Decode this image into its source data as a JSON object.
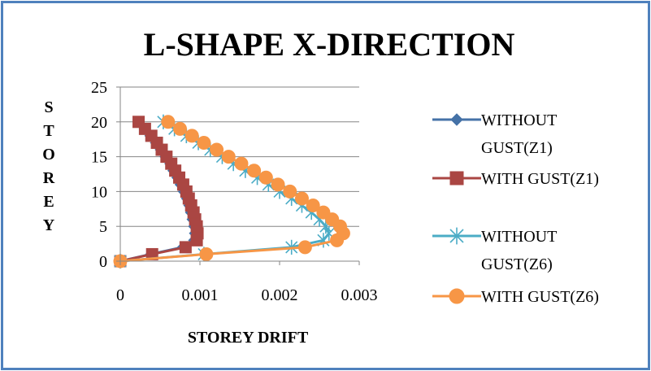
{
  "chart_data": {
    "type": "line",
    "title": "L-SHAPE X-DIRECTION",
    "xlabel": "STOREY DRIFT",
    "ylabel": "STOREY",
    "xlim": [
      0,
      0.003
    ],
    "ylim": [
      0,
      25
    ],
    "xticks": [
      "0",
      "0.001",
      "0.002",
      "0.003"
    ],
    "yticks": [
      "0",
      "5",
      "10",
      "15",
      "20",
      "25"
    ],
    "grid": "horizontal",
    "legend": "right",
    "series": [
      {
        "name": "WITHOUT GUST(Z1)",
        "legend_lines": [
          "WITHOUT",
          "GUST(Z1)"
        ],
        "color": "#4572a7",
        "marker": "diamond",
        "points": [
          [
            0,
            0
          ],
          [
            0.00038,
            1
          ],
          [
            0.00078,
            2
          ],
          [
            0.00092,
            3
          ],
          [
            0.00093,
            4
          ],
          [
            0.00092,
            5
          ],
          [
            0.0009,
            6
          ],
          [
            0.00088,
            7
          ],
          [
            0.00086,
            8
          ],
          [
            0.00083,
            9
          ],
          [
            0.00079,
            10
          ],
          [
            0.00075,
            11
          ],
          [
            0.00071,
            12
          ],
          [
            0.00066,
            13
          ],
          [
            0.00062,
            14
          ],
          [
            0.00056,
            15
          ],
          [
            0.0005,
            16
          ],
          [
            0.00044,
            17
          ],
          [
            0.00037,
            18
          ],
          [
            0.0003,
            19
          ],
          [
            0.00022,
            20
          ]
        ]
      },
      {
        "name": "WITH GUST(Z1)",
        "legend_lines": [
          "WITH GUST(Z1)"
        ],
        "color": "#aa4643",
        "marker": "square",
        "points": [
          [
            0,
            0
          ],
          [
            0.0004,
            1
          ],
          [
            0.00082,
            2
          ],
          [
            0.00096,
            3
          ],
          [
            0.00097,
            4
          ],
          [
            0.00096,
            5
          ],
          [
            0.00094,
            6
          ],
          [
            0.00092,
            7
          ],
          [
            0.00089,
            8
          ],
          [
            0.00086,
            9
          ],
          [
            0.00083,
            10
          ],
          [
            0.00079,
            11
          ],
          [
            0.00074,
            12
          ],
          [
            0.00069,
            13
          ],
          [
            0.00064,
            14
          ],
          [
            0.00058,
            15
          ],
          [
            0.00052,
            16
          ],
          [
            0.00046,
            17
          ],
          [
            0.00039,
            18
          ],
          [
            0.00031,
            19
          ],
          [
            0.00023,
            20
          ]
        ]
      },
      {
        "name": "WITHOUT GUST(Z6)",
        "legend_lines": [
          "WITHOUT",
          "GUST(Z6)"
        ],
        "color": "#4bacc6",
        "marker": "star",
        "points": [
          [
            0,
            0
          ],
          [
            0.00105,
            1
          ],
          [
            0.00215,
            2
          ],
          [
            0.00255,
            3
          ],
          [
            0.00262,
            4
          ],
          [
            0.00258,
            5
          ],
          [
            0.0025,
            6
          ],
          [
            0.0024,
            7
          ],
          [
            0.00228,
            8
          ],
          [
            0.00215,
            9
          ],
          [
            0.002,
            10
          ],
          [
            0.00186,
            11
          ],
          [
            0.00172,
            12
          ],
          [
            0.00157,
            13
          ],
          [
            0.00142,
            14
          ],
          [
            0.00128,
            15
          ],
          [
            0.00113,
            16
          ],
          [
            0.00098,
            17
          ],
          [
            0.00083,
            18
          ],
          [
            0.00068,
            19
          ],
          [
            0.00054,
            20
          ]
        ]
      },
      {
        "name": "WITH GUST(Z6)",
        "legend_lines": [
          "WITH GUST(Z6)"
        ],
        "color": "#f79646",
        "marker": "circle",
        "points": [
          [
            0,
            0
          ],
          [
            0.00108,
            1
          ],
          [
            0.00232,
            2
          ],
          [
            0.00272,
            3
          ],
          [
            0.0028,
            4
          ],
          [
            0.00276,
            5
          ],
          [
            0.00266,
            6
          ],
          [
            0.00255,
            7
          ],
          [
            0.00242,
            8
          ],
          [
            0.00228,
            9
          ],
          [
            0.00213,
            10
          ],
          [
            0.00198,
            11
          ],
          [
            0.00183,
            12
          ],
          [
            0.00168,
            13
          ],
          [
            0.00152,
            14
          ],
          [
            0.00136,
            15
          ],
          [
            0.00121,
            16
          ],
          [
            0.00105,
            17
          ],
          [
            0.0009,
            18
          ],
          [
            0.00075,
            19
          ],
          [
            0.0006,
            20
          ]
        ]
      }
    ]
  }
}
